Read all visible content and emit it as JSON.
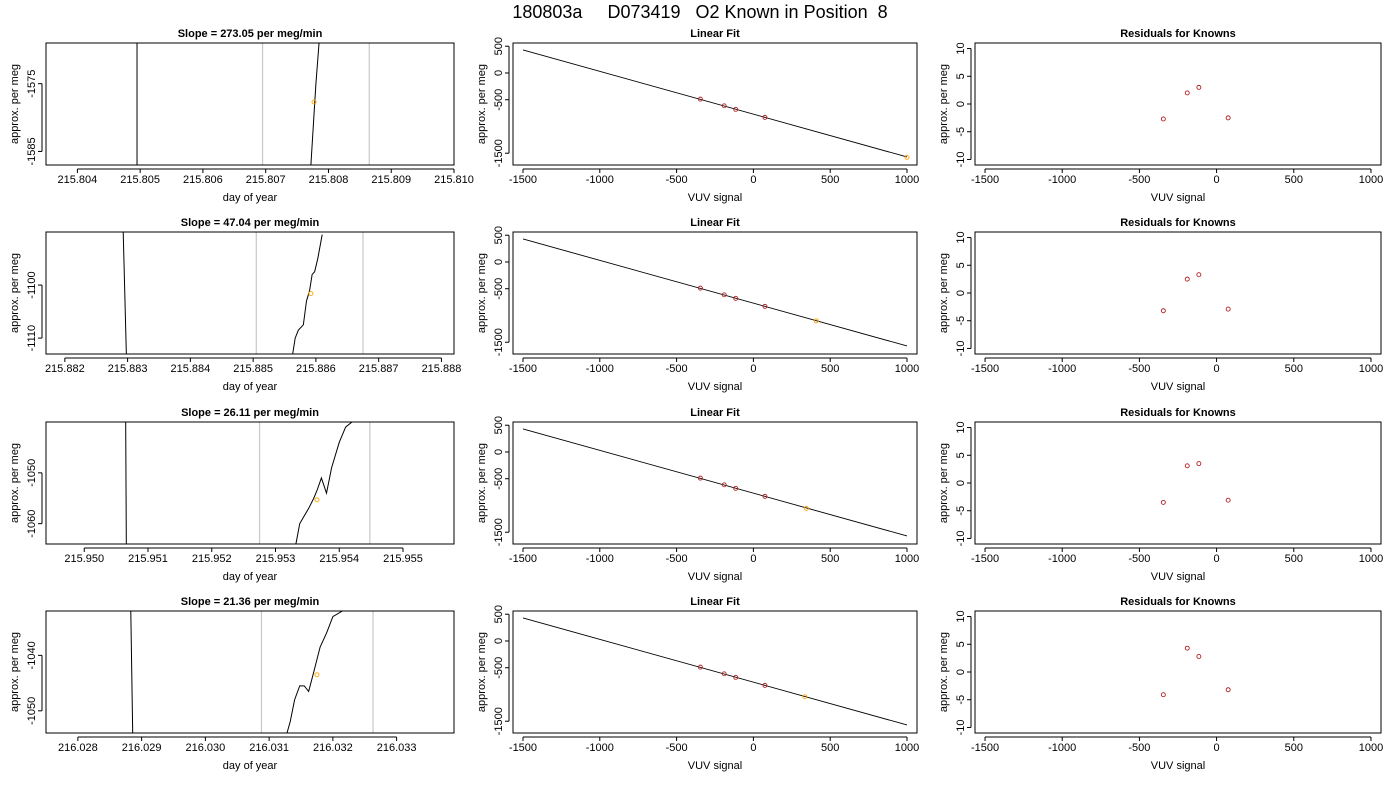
{
  "figure": {
    "title": "180803a     D073419   O2 Known in Position  8"
  },
  "chart_data": [
    {
      "type": "line",
      "row": 1,
      "title": "Slope =  273.05  per meg/min",
      "xlabel": "day of year",
      "ylabel": "approx. per meg",
      "xlim": [
        215.8035,
        215.81
      ],
      "ylim": [
        -1587,
        -1569
      ],
      "xticks": [
        215.804,
        215.805,
        215.806,
        215.807,
        215.808,
        215.809,
        215.81
      ],
      "xtick_labels": [
        "215.804",
        "215.805",
        "215.806",
        "215.807",
        "215.808",
        "215.809",
        "215.810"
      ],
      "yticks": [
        -1575,
        -1585
      ],
      "ytick_labels": [
        "-1575",
        "-1585"
      ],
      "vlines": [
        215.80695,
        215.80865
      ],
      "trace": [
        [
          215.80495,
          -1569
        ],
        [
          215.80495,
          -1587
        ],
        [
          null,
          null
        ],
        [
          215.80772,
          -1587
        ],
        [
          215.8078,
          -1575
        ],
        [
          215.80785,
          -1569
        ]
      ],
      "point": [
        215.80777,
        -1577.7
      ]
    },
    {
      "type": "line",
      "row": 2,
      "title": "Slope =  47.04  per meg/min",
      "xlabel": "day of year",
      "ylabel": "approx. per meg",
      "xlim": [
        215.8817,
        215.8882
      ],
      "ylim": [
        -1113,
        -1090
      ],
      "xticks": [
        215.882,
        215.883,
        215.884,
        215.885,
        215.886,
        215.887,
        215.888
      ],
      "xtick_labels": [
        "215.882",
        "215.883",
        "215.884",
        "215.885",
        "215.886",
        "215.887",
        "215.888"
      ],
      "yticks": [
        -1100,
        -1110
      ],
      "ytick_labels": [
        "-1100",
        "-1110"
      ],
      "vlines": [
        215.88505,
        215.88675
      ],
      "trace": [
        [
          215.88293,
          -1090
        ],
        [
          215.88298,
          -1113
        ],
        [
          null,
          null
        ],
        [
          215.88563,
          -1113
        ],
        [
          215.88567,
          -1110
        ],
        [
          215.88572,
          -1108.5
        ],
        [
          215.8858,
          -1107.5
        ],
        [
          215.88585,
          -1103
        ],
        [
          215.8859,
          -1101
        ],
        [
          215.88594,
          -1098
        ],
        [
          215.88598,
          -1097.5
        ],
        [
          215.88603,
          -1095
        ],
        [
          215.8861,
          -1090.5
        ]
      ],
      "point": [
        215.88592,
        -1101.6
      ]
    },
    {
      "type": "line",
      "row": 3,
      "title": "Slope =  26.11  per meg/min",
      "xlabel": "day of year",
      "ylabel": "approx. per meg",
      "xlim": [
        215.9494,
        215.9558
      ],
      "ylim": [
        -1064,
        -1040
      ],
      "xticks": [
        215.95,
        215.951,
        215.952,
        215.953,
        215.954,
        215.955
      ],
      "xtick_labels": [
        "215.950",
        "215.951",
        "215.952",
        "215.953",
        "215.954",
        "215.955"
      ],
      "yticks": [
        -1050,
        -1060
      ],
      "ytick_labels": [
        "-1050",
        "-1060"
      ],
      "vlines": [
        215.95275,
        215.95448
      ],
      "trace": [
        [
          215.95065,
          -1040
        ],
        [
          215.95066,
          -1064
        ],
        [
          null,
          null
        ],
        [
          215.95332,
          -1064
        ],
        [
          215.95338,
          -1060
        ],
        [
          215.95345,
          -1058.5
        ],
        [
          215.95352,
          -1057
        ],
        [
          215.9536,
          -1055
        ],
        [
          215.95365,
          -1053.5
        ],
        [
          215.95372,
          -1051
        ],
        [
          215.9538,
          -1054
        ],
        [
          215.95388,
          -1049
        ],
        [
          215.954,
          -1044
        ],
        [
          215.9541,
          -1041
        ],
        [
          215.9542,
          -1040
        ]
      ],
      "point": [
        215.95365,
        -1055.3
      ]
    },
    {
      "type": "line",
      "row": 4,
      "title": "Slope =  21.36  per meg/min",
      "xlabel": "day of year",
      "ylabel": "approx. per meg",
      "xlim": [
        216.0275,
        216.0339
      ],
      "ylim": [
        -1054,
        -1032
      ],
      "xticks": [
        216.028,
        216.029,
        216.03,
        216.031,
        216.032,
        216.033
      ],
      "xtick_labels": [
        "216.028",
        "216.029",
        "216.030",
        "216.031",
        "216.032",
        "216.033"
      ],
      "yticks": [
        -1040,
        -1050
      ],
      "ytick_labels": [
        "-1040",
        "-1050"
      ],
      "vlines": [
        216.03088,
        216.03263
      ],
      "trace": [
        [
          216.02883,
          -1032
        ],
        [
          216.02886,
          -1054
        ],
        [
          null,
          null
        ],
        [
          216.03128,
          -1054
        ],
        [
          216.03133,
          -1052
        ],
        [
          216.0314,
          -1048
        ],
        [
          216.03148,
          -1045.5
        ],
        [
          216.03155,
          -1045.5
        ],
        [
          216.03162,
          -1046.5
        ],
        [
          216.0317,
          -1043
        ],
        [
          216.0318,
          -1038.5
        ],
        [
          216.0319,
          -1036
        ],
        [
          216.032,
          -1033
        ],
        [
          216.03215,
          -1032
        ]
      ],
      "point": [
        216.03175,
        -1043.5
      ]
    },
    {
      "type": "scatter",
      "row": 1,
      "title": "Linear Fit",
      "xlabel": "VUV signal",
      "ylabel": "approx. per meg",
      "xlim": [
        -1565,
        1065
      ],
      "ylim": [
        -1720,
        560
      ],
      "xticks": [
        -1500,
        -1000,
        -500,
        0,
        500,
        1000
      ],
      "xtick_labels": [
        "-1500",
        "-1000",
        "-500",
        "0",
        "500",
        "1000"
      ],
      "yticks": [
        500,
        0,
        -500,
        -1500
      ],
      "ytick_labels": [
        "500",
        "0",
        "-500",
        "-1500"
      ],
      "fit_line": [
        [
          -1500,
          430
        ],
        [
          1000,
          -1570
        ]
      ],
      "knowns": [
        [
          -345,
          -489
        ],
        [
          -190,
          -614
        ],
        [
          -115,
          -680
        ],
        [
          75,
          -830
        ]
      ],
      "unknown": [
        1000,
        -1577
      ]
    },
    {
      "type": "scatter",
      "row": 2,
      "title": "Linear Fit",
      "xlabel": "VUV signal",
      "ylabel": "approx. per meg",
      "xlim": [
        -1565,
        1065
      ],
      "ylim": [
        -1720,
        560
      ],
      "xticks": [
        -1500,
        -1000,
        -500,
        0,
        500,
        1000
      ],
      "xtick_labels": [
        "-1500",
        "-1000",
        "-500",
        "0",
        "500",
        "1000"
      ],
      "yticks": [
        500,
        0,
        -500,
        -1500
      ],
      "ytick_labels": [
        "500",
        "0",
        "-500",
        "-1500"
      ],
      "fit_line": [
        [
          -1500,
          430
        ],
        [
          1000,
          -1570
        ]
      ],
      "knowns": [
        [
          -345,
          -489
        ],
        [
          -190,
          -614
        ],
        [
          -115,
          -680
        ],
        [
          75,
          -830
        ]
      ],
      "unknown": [
        410,
        -1101
      ]
    },
    {
      "type": "scatter",
      "row": 3,
      "title": "Linear Fit",
      "xlabel": "VUV signal",
      "ylabel": "approx. per meg",
      "xlim": [
        -1565,
        1065
      ],
      "ylim": [
        -1720,
        560
      ],
      "xticks": [
        -1500,
        -1000,
        -500,
        0,
        500,
        1000
      ],
      "xtick_labels": [
        "-1500",
        "-1000",
        "-500",
        "0",
        "500",
        "1000"
      ],
      "yticks": [
        500,
        0,
        -500,
        -1500
      ],
      "ytick_labels": [
        "500",
        "0",
        "-500",
        "-1500"
      ],
      "fit_line": [
        [
          -1500,
          430
        ],
        [
          1000,
          -1570
        ]
      ],
      "knowns": [
        [
          -345,
          -489
        ],
        [
          -190,
          -614
        ],
        [
          -115,
          -680
        ],
        [
          75,
          -830
        ]
      ],
      "unknown": [
        345,
        -1055
      ]
    },
    {
      "type": "scatter",
      "row": 4,
      "title": "Linear Fit",
      "xlabel": "VUV signal",
      "ylabel": "approx. per meg",
      "xlim": [
        -1565,
        1065
      ],
      "ylim": [
        -1720,
        560
      ],
      "xticks": [
        -1500,
        -1000,
        -500,
        0,
        500,
        1000
      ],
      "xtick_labels": [
        "-1500",
        "-1000",
        "-500",
        "0",
        "500",
        "1000"
      ],
      "yticks": [
        500,
        0,
        -500,
        -1500
      ],
      "ytick_labels": [
        "500",
        "0",
        "-500",
        "-1500"
      ],
      "fit_line": [
        [
          -1500,
          430
        ],
        [
          1000,
          -1570
        ]
      ],
      "knowns": [
        [
          -345,
          -489
        ],
        [
          -190,
          -614
        ],
        [
          -115,
          -680
        ],
        [
          75,
          -830
        ]
      ],
      "unknown": [
        335,
        -1044
      ]
    },
    {
      "type": "scatter",
      "row": 1,
      "title": "Residuals for Knowns",
      "xlabel": "VUV signal",
      "ylabel": "approx. per meg",
      "xlim": [
        -1565,
        1065
      ],
      "ylim": [
        -11,
        11
      ],
      "xticks": [
        -1500,
        -1000,
        -500,
        0,
        500,
        1000
      ],
      "xtick_labels": [
        "-1500",
        "-1000",
        "-500",
        "0",
        "500",
        "1000"
      ],
      "yticks": [
        10,
        5,
        0,
        -5,
        -10
      ],
      "ytick_labels": [
        "10",
        "5",
        "0",
        "-5",
        "-10"
      ],
      "residuals": [
        [
          -345,
          -2.7
        ],
        [
          -190,
          2.0
        ],
        [
          -115,
          3.0
        ],
        [
          75,
          -2.5
        ]
      ]
    },
    {
      "type": "scatter",
      "row": 2,
      "title": "Residuals for Knowns",
      "xlabel": "VUV signal",
      "ylabel": "approx. per meg",
      "xlim": [
        -1565,
        1065
      ],
      "ylim": [
        -11,
        11
      ],
      "xticks": [
        -1500,
        -1000,
        -500,
        0,
        500,
        1000
      ],
      "xtick_labels": [
        "-1500",
        "-1000",
        "-500",
        "0",
        "500",
        "1000"
      ],
      "yticks": [
        10,
        5,
        0,
        -5,
        -10
      ],
      "ytick_labels": [
        "10",
        "5",
        "0",
        "-5",
        "-10"
      ],
      "residuals": [
        [
          -345,
          -3.2
        ],
        [
          -190,
          2.5
        ],
        [
          -115,
          3.3
        ],
        [
          75,
          -2.9
        ]
      ]
    },
    {
      "type": "scatter",
      "row": 3,
      "title": "Residuals for Knowns",
      "xlabel": "VUV signal",
      "ylabel": "approx. per meg",
      "xlim": [
        -1565,
        1065
      ],
      "ylim": [
        -11,
        11
      ],
      "xticks": [
        -1500,
        -1000,
        -500,
        0,
        500,
        1000
      ],
      "xtick_labels": [
        "-1500",
        "-1000",
        "-500",
        "0",
        "500",
        "1000"
      ],
      "yticks": [
        10,
        5,
        0,
        -5,
        -10
      ],
      "ytick_labels": [
        "10",
        "5",
        "0",
        "-5",
        "-10"
      ],
      "residuals": [
        [
          -345,
          -3.5
        ],
        [
          -190,
          3.1
        ],
        [
          -115,
          3.5
        ],
        [
          75,
          -3.1
        ]
      ]
    },
    {
      "type": "scatter",
      "row": 4,
      "title": "Residuals for Knowns",
      "xlabel": "VUV signal",
      "ylabel": "approx. per meg",
      "xlim": [
        -1565,
        1065
      ],
      "ylim": [
        -11,
        11
      ],
      "xticks": [
        -1500,
        -1000,
        -500,
        0,
        500,
        1000
      ],
      "xtick_labels": [
        "-1500",
        "-1000",
        "-500",
        "0",
        "500",
        "1000"
      ],
      "yticks": [
        10,
        5,
        0,
        -5,
        -10
      ],
      "ytick_labels": [
        "10",
        "5",
        "0",
        "-5",
        "-10"
      ],
      "residuals": [
        [
          -345,
          -4.1
        ],
        [
          -190,
          4.3
        ],
        [
          -115,
          2.8
        ],
        [
          75,
          -3.2
        ]
      ]
    }
  ],
  "colors": {
    "axis": "#000000",
    "trace": "#000000",
    "vline": "#c8c8c8",
    "known_marker": "#b22222",
    "unknown_marker": "#ffa500"
  }
}
